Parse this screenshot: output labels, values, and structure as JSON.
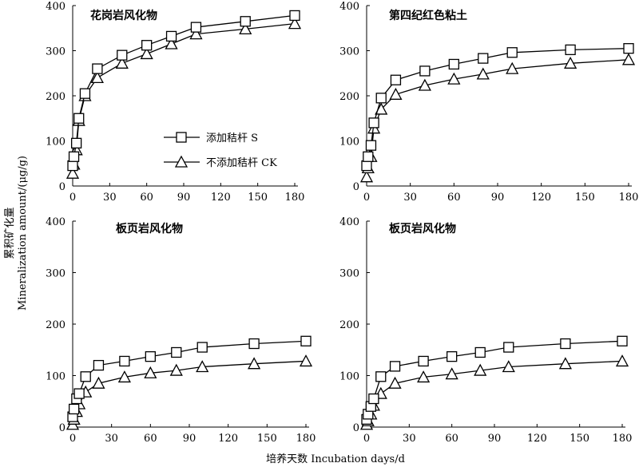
{
  "figure": {
    "ylabel_cn": "累积矿化量",
    "ylabel_en": "Mineralization amount/(μg/g)",
    "xlabel": "培养天数 Incubation days/d"
  },
  "legend": {
    "s_label": "添加秸杆 S",
    "ck_label": "不添加秸杆 CK"
  },
  "chart_data": [
    {
      "type": "line",
      "title": "花岗岩风化物",
      "x": [
        0,
        1,
        3,
        5,
        10,
        20,
        40,
        60,
        80,
        100,
        140,
        180
      ],
      "series": [
        {
          "name": "添加秸杆 S",
          "marker": "square",
          "values": [
            45,
            65,
            95,
            150,
            205,
            260,
            290,
            312,
            332,
            352,
            365,
            378
          ]
        },
        {
          "name": "不添加秸杆 CK",
          "marker": "triangle",
          "values": [
            28,
            48,
            80,
            145,
            200,
            240,
            272,
            293,
            315,
            337,
            348,
            360
          ]
        }
      ],
      "xlim": [
        0,
        180
      ],
      "ylim": [
        0,
        400
      ],
      "xticks": [
        0,
        30,
        60,
        90,
        120,
        150,
        180
      ],
      "yticks": [
        0,
        100,
        200,
        300,
        400
      ],
      "legend": "center"
    },
    {
      "type": "line",
      "title": "第四纪红色粘土",
      "x": [
        0,
        1,
        3,
        5,
        10,
        20,
        40,
        60,
        80,
        100,
        140,
        180
      ],
      "series": [
        {
          "name": "添加秸杆 S",
          "marker": "square",
          "values": [
            45,
            65,
            90,
            140,
            195,
            235,
            255,
            270,
            283,
            296,
            302,
            305
          ]
        },
        {
          "name": "不添加秸杆 CK",
          "marker": "triangle",
          "values": [
            20,
            40,
            65,
            128,
            170,
            203,
            223,
            237,
            248,
            260,
            272,
            280
          ]
        }
      ],
      "xlim": [
        0,
        180
      ],
      "ylim": [
        0,
        400
      ],
      "xticks": [
        0,
        30,
        60,
        90,
        120,
        150,
        180
      ],
      "yticks": [
        0,
        100,
        200,
        300,
        400
      ]
    },
    {
      "type": "line",
      "title": "板页岩风化物",
      "x": [
        0,
        1,
        3,
        5,
        10,
        20,
        40,
        60,
        80,
        100,
        140,
        180
      ],
      "series": [
        {
          "name": "添加秸杆 S",
          "marker": "square",
          "values": [
            20,
            35,
            55,
            65,
            98,
            120,
            128,
            137,
            145,
            155,
            162,
            167
          ]
        },
        {
          "name": "不添加秸杆 CK",
          "marker": "triangle",
          "values": [
            5,
            15,
            30,
            45,
            68,
            85,
            97,
            105,
            110,
            117,
            123,
            128
          ]
        }
      ],
      "xlim": [
        0,
        180
      ],
      "ylim": [
        0,
        400
      ],
      "xticks": [
        0,
        30,
        60,
        90,
        120,
        150,
        180
      ],
      "yticks": [
        0,
        100,
        200,
        300,
        400
      ]
    },
    {
      "type": "line",
      "title": "板页岩风化物",
      "x": [
        0,
        1,
        3,
        5,
        10,
        20,
        40,
        60,
        80,
        100,
        140,
        180
      ],
      "series": [
        {
          "name": "添加秸杆 S",
          "marker": "square",
          "values": [
            15,
            25,
            40,
            55,
            98,
            118,
            128,
            137,
            145,
            155,
            162,
            167
          ]
        },
        {
          "name": "不添加秸杆 CK",
          "marker": "triangle",
          "values": [
            5,
            12,
            25,
            42,
            65,
            85,
            97,
            103,
            110,
            117,
            123,
            128
          ]
        }
      ],
      "xlim": [
        0,
        180
      ],
      "ylim": [
        0,
        400
      ],
      "xticks": [
        0,
        30,
        60,
        90,
        120,
        150,
        180
      ],
      "yticks": [
        0,
        100,
        200,
        300,
        400
      ]
    }
  ]
}
